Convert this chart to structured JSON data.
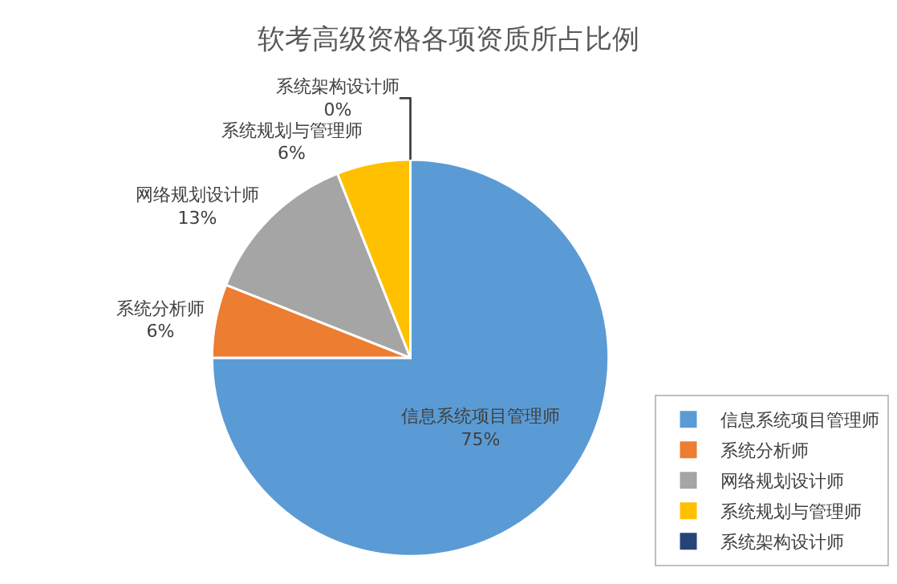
{
  "chart_data": {
    "type": "pie",
    "title": "软考高级资格各项资质所占比例",
    "categories": [
      "信息系统项目管理师",
      "系统分析师",
      "网络规划设计师",
      "系统规划与管理师",
      "系统架构设计师"
    ],
    "values": [
      75,
      6,
      13,
      6,
      0
    ],
    "value_labels": [
      "75%",
      "6%",
      "13%",
      "6%",
      "0%"
    ],
    "colors": [
      "#5b9bd5",
      "#ed7d31",
      "#a5a5a5",
      "#ffc000",
      "#264478"
    ],
    "legend": "right"
  }
}
